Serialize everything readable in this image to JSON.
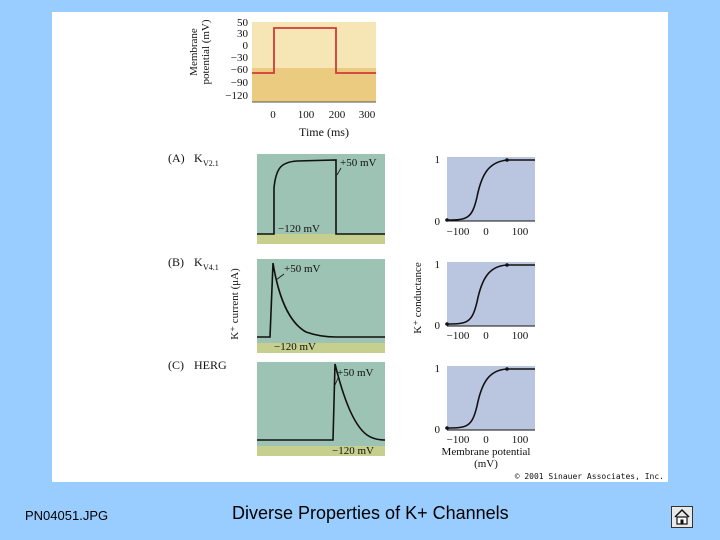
{
  "voltage_protocol": {
    "ylabel": [
      "Membrane",
      "potential (mV)"
    ],
    "yticks": [
      "50",
      "30",
      "0",
      "−30",
      "−60",
      "−90",
      "−120"
    ],
    "xticks": [
      "0",
      "100",
      "200",
      "300"
    ],
    "xlabel": "Time (ms)"
  },
  "channels": [
    {
      "label": "(A)",
      "name": "K",
      "subscript": "V2.1",
      "step_label": "+50 mV",
      "hold_label": "−120 mV"
    },
    {
      "label": "(B)",
      "name": "K",
      "subscript": "V4.1",
      "step_label": "+50 mV",
      "hold_label": "−120 mV"
    },
    {
      "label": "(C)",
      "name": "HERG",
      "subscript": "",
      "step_label": "+50 mV",
      "hold_label": "−120 mV"
    }
  ],
  "current_ylabel": "K⁺ current (μA)",
  "conductance": {
    "ylabel": "K⁺ conductance",
    "yticks": [
      "0",
      "1"
    ],
    "xticks": [
      "−100",
      "0",
      "100"
    ],
    "xlabel": [
      "Membrane potential",
      "(mV)"
    ]
  },
  "copyright": "© 2001 Sinauer Associates, Inc.",
  "footer": {
    "file": "PN04051.JPG",
    "title": "Diverse Properties of K+ Channels"
  },
  "colors": {
    "background": "#99ccff",
    "trace_panel": "#9dc3b4",
    "trace_baseline": "#c7cf8e",
    "conductance_panel": "#bac6e0",
    "protocol_light": "#f6e6b6",
    "protocol_dark": "#ebcb80",
    "protocol_line": "#d23a3a"
  }
}
